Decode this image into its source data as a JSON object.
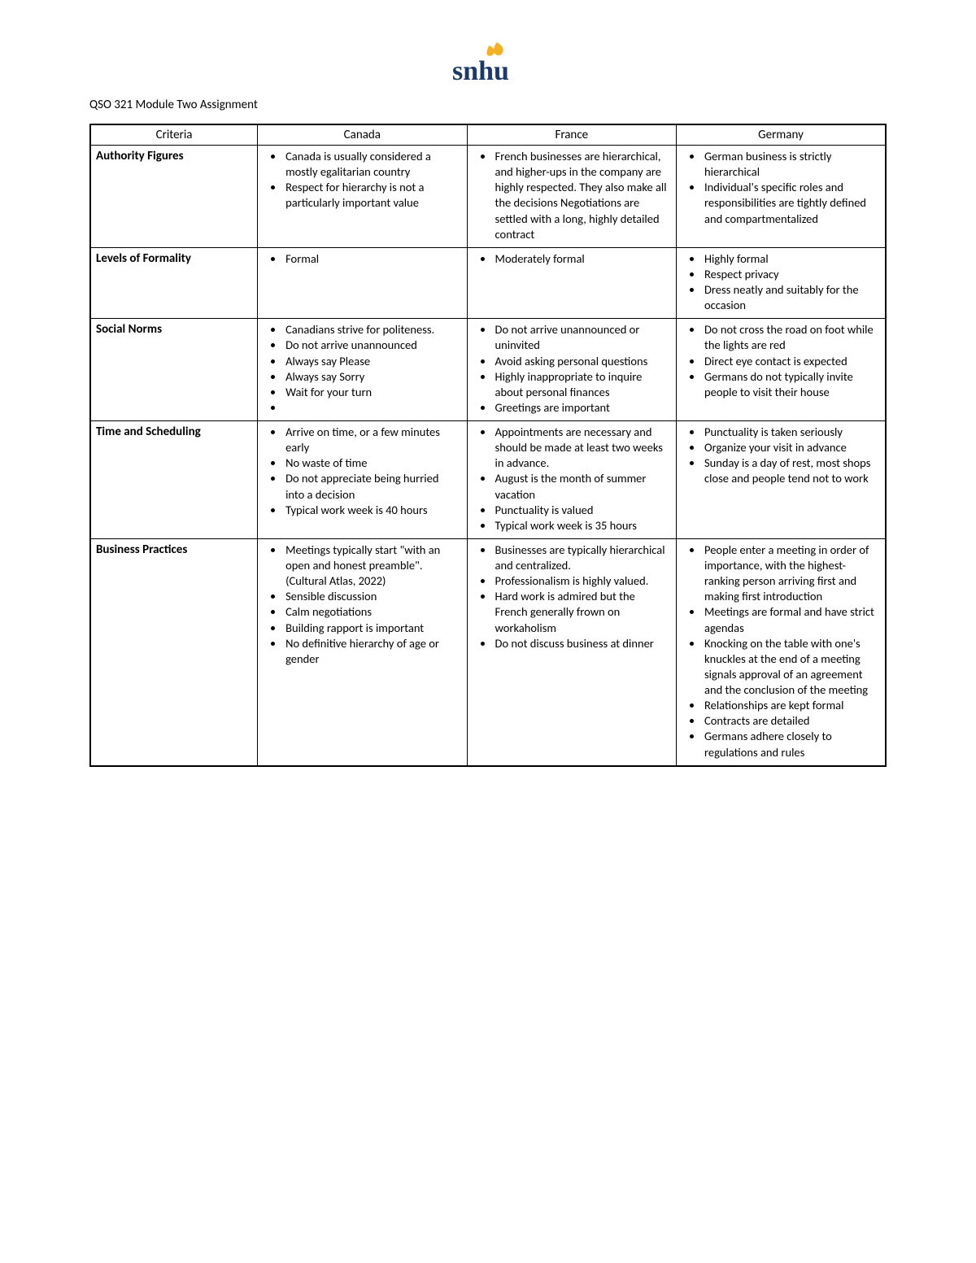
{
  "logo": {
    "text_color": "#1b3a6b",
    "flame_color": "#f4b223"
  },
  "title": "QSO 321 Module Two Assignment",
  "headers": {
    "criteria": "Criteria",
    "c1": "Canada",
    "c2": "France",
    "c3": "Germany"
  },
  "rows": [
    {
      "criteria": "Authority Figures",
      "canada": [
        "Canada is usually considered a mostly egalitarian country",
        "Respect for hierarchy is not a particularly important value"
      ],
      "france": [
        "French businesses are hierarchical, and higher-ups in the company are highly respected. They also make all the decisions Negotiations are settled with a long, highly detailed contract"
      ],
      "germany": [
        "German business is strictly hierarchical",
        "Individual's specific roles and responsibilities are tightly defined and compartmentalized"
      ]
    },
    {
      "criteria": "Levels of Formality",
      "canada": [
        "Formal"
      ],
      "france": [
        "Moderately formal"
      ],
      "germany": [
        "Highly formal",
        "Respect privacy",
        "Dress neatly and suitably for the occasion"
      ]
    },
    {
      "criteria": "Social Norms",
      "canada": [
        "Canadians strive for politeness.",
        "Do not arrive unannounced",
        "Always say Please",
        "Always say Sorry",
        "Wait for your turn",
        ""
      ],
      "france": [
        "Do not arrive unannounced or uninvited",
        "Avoid asking personal questions",
        "Highly inappropriate to inquire about personal finances",
        "Greetings are important"
      ],
      "germany": [
        "Do not cross the road on foot while the lights are red",
        "Direct eye contact is expected",
        "Germans do not typically invite people to visit their house"
      ]
    },
    {
      "criteria": "Time and Scheduling",
      "canada": [
        "Arrive on time, or a few minutes early",
        "No waste of time",
        "Do not appreciate being hurried into a decision",
        "Typical work week is 40 hours"
      ],
      "france": [
        "Appointments are necessary and should be made at least two weeks in advance.",
        "August is the month of summer vacation",
        "Punctuality is valued",
        "Typical work week is 35 hours"
      ],
      "germany": [
        "Punctuality is taken seriously",
        "Organize your visit in advance",
        "Sunday is a day of rest, most shops close and people tend not to work"
      ]
    },
    {
      "criteria": "Business Practices",
      "canada": [
        "Meetings typically start \"with an open and honest preamble\". (Cultural Atlas, 2022)",
        "Sensible discussion",
        "Calm negotiations",
        "Building rapport is important",
        "No definitive hierarchy of age or gender"
      ],
      "france": [
        "Businesses are typically hierarchical and centralized.",
        "Professionalism is highly valued.",
        "Hard work is admired but the French generally frown on workaholism",
        "Do not discuss business at dinner"
      ],
      "germany": [
        "People enter a meeting in order of importance, with the highest-ranking person arriving first and making first introduction",
        "Meetings are formal and have strict agendas",
        "Knocking on the table with one's knuckles at the end of a meeting signals approval of an agreement and the conclusion of the meeting",
        "Relationships are kept formal",
        "Contracts are detailed",
        "Germans adhere closely to regulations and rules"
      ]
    }
  ]
}
